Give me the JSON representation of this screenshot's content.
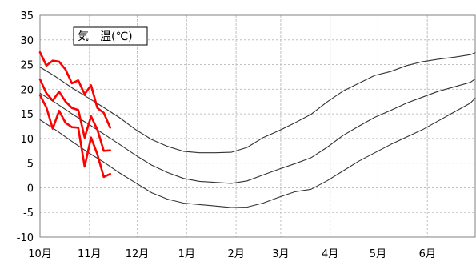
{
  "chart_data": {
    "type": "line",
    "title": "気　温(℃)",
    "xlabel": "",
    "ylabel": "",
    "ylim": [
      -10,
      35
    ],
    "yticks": [
      -10,
      -5,
      0,
      5,
      10,
      15,
      20,
      25,
      30,
      35
    ],
    "xlim": [
      1,
      274
    ],
    "xticks": [
      {
        "x": 1,
        "label": "10月"
      },
      {
        "x": 32,
        "label": "11月"
      },
      {
        "x": 62,
        "label": "12月"
      },
      {
        "x": 93,
        "label": "1月"
      },
      {
        "x": 124,
        "label": "2月"
      },
      {
        "x": 152,
        "label": "3月"
      },
      {
        "x": 183,
        "label": "4月"
      },
      {
        "x": 213,
        "label": "5月"
      },
      {
        "x": 244,
        "label": "6月"
      }
    ],
    "grid": true,
    "colors": {
      "normal": "#333333",
      "observed": "#ff0000",
      "grid": "#c0c0c0"
    },
    "series": [
      {
        "role": "normal",
        "x": [
          1,
          11,
          21,
          31,
          41,
          51,
          61,
          71,
          81,
          91,
          101,
          111,
          121,
          131,
          141,
          151,
          161,
          171,
          181,
          191,
          201,
          211,
          221,
          231,
          241,
          251,
          261,
          271,
          274
        ],
        "values": [
          24.5,
          22.5,
          20.3,
          18.3,
          16.3,
          14.2,
          11.8,
          9.8,
          8.4,
          7.4,
          7.1,
          7.1,
          7.2,
          8.2,
          10.2,
          11.6,
          13.2,
          14.9,
          17.4,
          19.6,
          21.2,
          22.8,
          23.6,
          24.8,
          25.6,
          26.1,
          26.5,
          27.0,
          27.4
        ]
      },
      {
        "role": "normal",
        "x": [
          1,
          11,
          21,
          31,
          41,
          51,
          61,
          71,
          81,
          91,
          101,
          111,
          121,
          131,
          141,
          151,
          161,
          171,
          181,
          191,
          201,
          211,
          221,
          231,
          241,
          251,
          261,
          271,
          274
        ],
        "values": [
          19.2,
          17.2,
          15.0,
          13.0,
          10.9,
          8.8,
          6.6,
          4.6,
          3.1,
          1.9,
          1.3,
          1.1,
          0.9,
          1.4,
          2.6,
          3.8,
          4.9,
          6.1,
          8.2,
          10.6,
          12.5,
          14.3,
          15.7,
          17.2,
          18.4,
          19.6,
          20.5,
          21.4,
          22.1
        ]
      },
      {
        "role": "normal",
        "x": [
          1,
          11,
          21,
          31,
          41,
          51,
          61,
          71,
          81,
          91,
          101,
          111,
          121,
          131,
          141,
          151,
          161,
          171,
          181,
          191,
          201,
          211,
          221,
          231,
          241,
          251,
          261,
          271,
          274
        ],
        "values": [
          13.8,
          11.7,
          9.4,
          7.2,
          5.2,
          3.0,
          1.0,
          -1.0,
          -2.3,
          -3.1,
          -3.4,
          -3.7,
          -4.0,
          -3.9,
          -3.1,
          -1.9,
          -0.8,
          -0.3,
          1.4,
          3.4,
          5.4,
          7.1,
          8.8,
          10.3,
          11.8,
          13.6,
          15.4,
          17.2,
          18.2
        ]
      },
      {
        "role": "observed-max",
        "x": [
          1,
          5,
          9,
          13,
          17,
          21,
          25,
          29,
          33,
          37,
          41,
          45,
          49,
          53,
          57
        ],
        "values": [
          27.5,
          24.8,
          25.8,
          25.6,
          24.0,
          21.2,
          21.8,
          19.0,
          20.8,
          16.2,
          15.2,
          12.2,
          0,
          0,
          0
        ],
        "count": 12
      },
      {
        "role": "observed-mean",
        "x": [
          1,
          5,
          9,
          13,
          17,
          21,
          25,
          29,
          33,
          37,
          41,
          45
        ],
        "values": [
          22.0,
          19.2,
          17.7,
          19.5,
          17.5,
          16.2,
          15.8,
          10.2,
          14.5,
          11.8,
          7.5,
          7.6
        ]
      },
      {
        "role": "observed-min",
        "x": [
          1,
          5,
          9,
          13,
          17,
          21,
          25,
          29,
          33,
          37,
          41,
          45
        ],
        "values": [
          18.8,
          16.3,
          12.0,
          15.6,
          13.2,
          12.3,
          12.2,
          4.3,
          10.2,
          6.8,
          2.2,
          2.8
        ]
      }
    ]
  }
}
